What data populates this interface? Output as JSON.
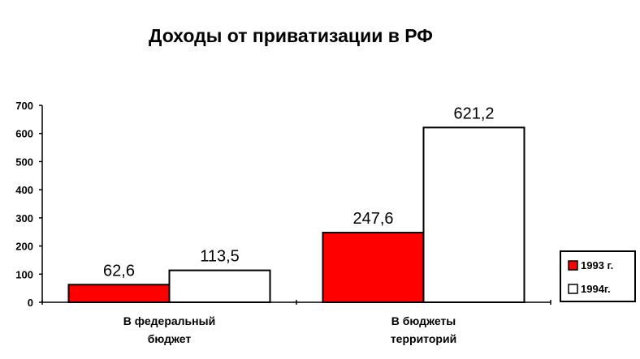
{
  "chart_data": {
    "type": "bar",
    "title": "Доходы от приватизации в РФ",
    "categories": [
      [
        "В федеральный",
        "бюджет"
      ],
      [
        "В бюджеты",
        "территорий"
      ]
    ],
    "series": [
      {
        "name": "1993 г.",
        "values": [
          62.6,
          247.6
        ],
        "labels": [
          "62,6",
          "247,6"
        ],
        "color": "#ff0000"
      },
      {
        "name": "1994г.",
        "values": [
          113.5,
          621.2
        ],
        "labels": [
          "113,5",
          "621,2"
        ],
        "color": "#ffffff"
      }
    ],
    "yticks": [
      0,
      100,
      200,
      300,
      400,
      500,
      600,
      700
    ],
    "ylim": [
      0,
      700
    ],
    "grid": false,
    "legend_position": "right",
    "bar_edge_color": "#000000"
  }
}
